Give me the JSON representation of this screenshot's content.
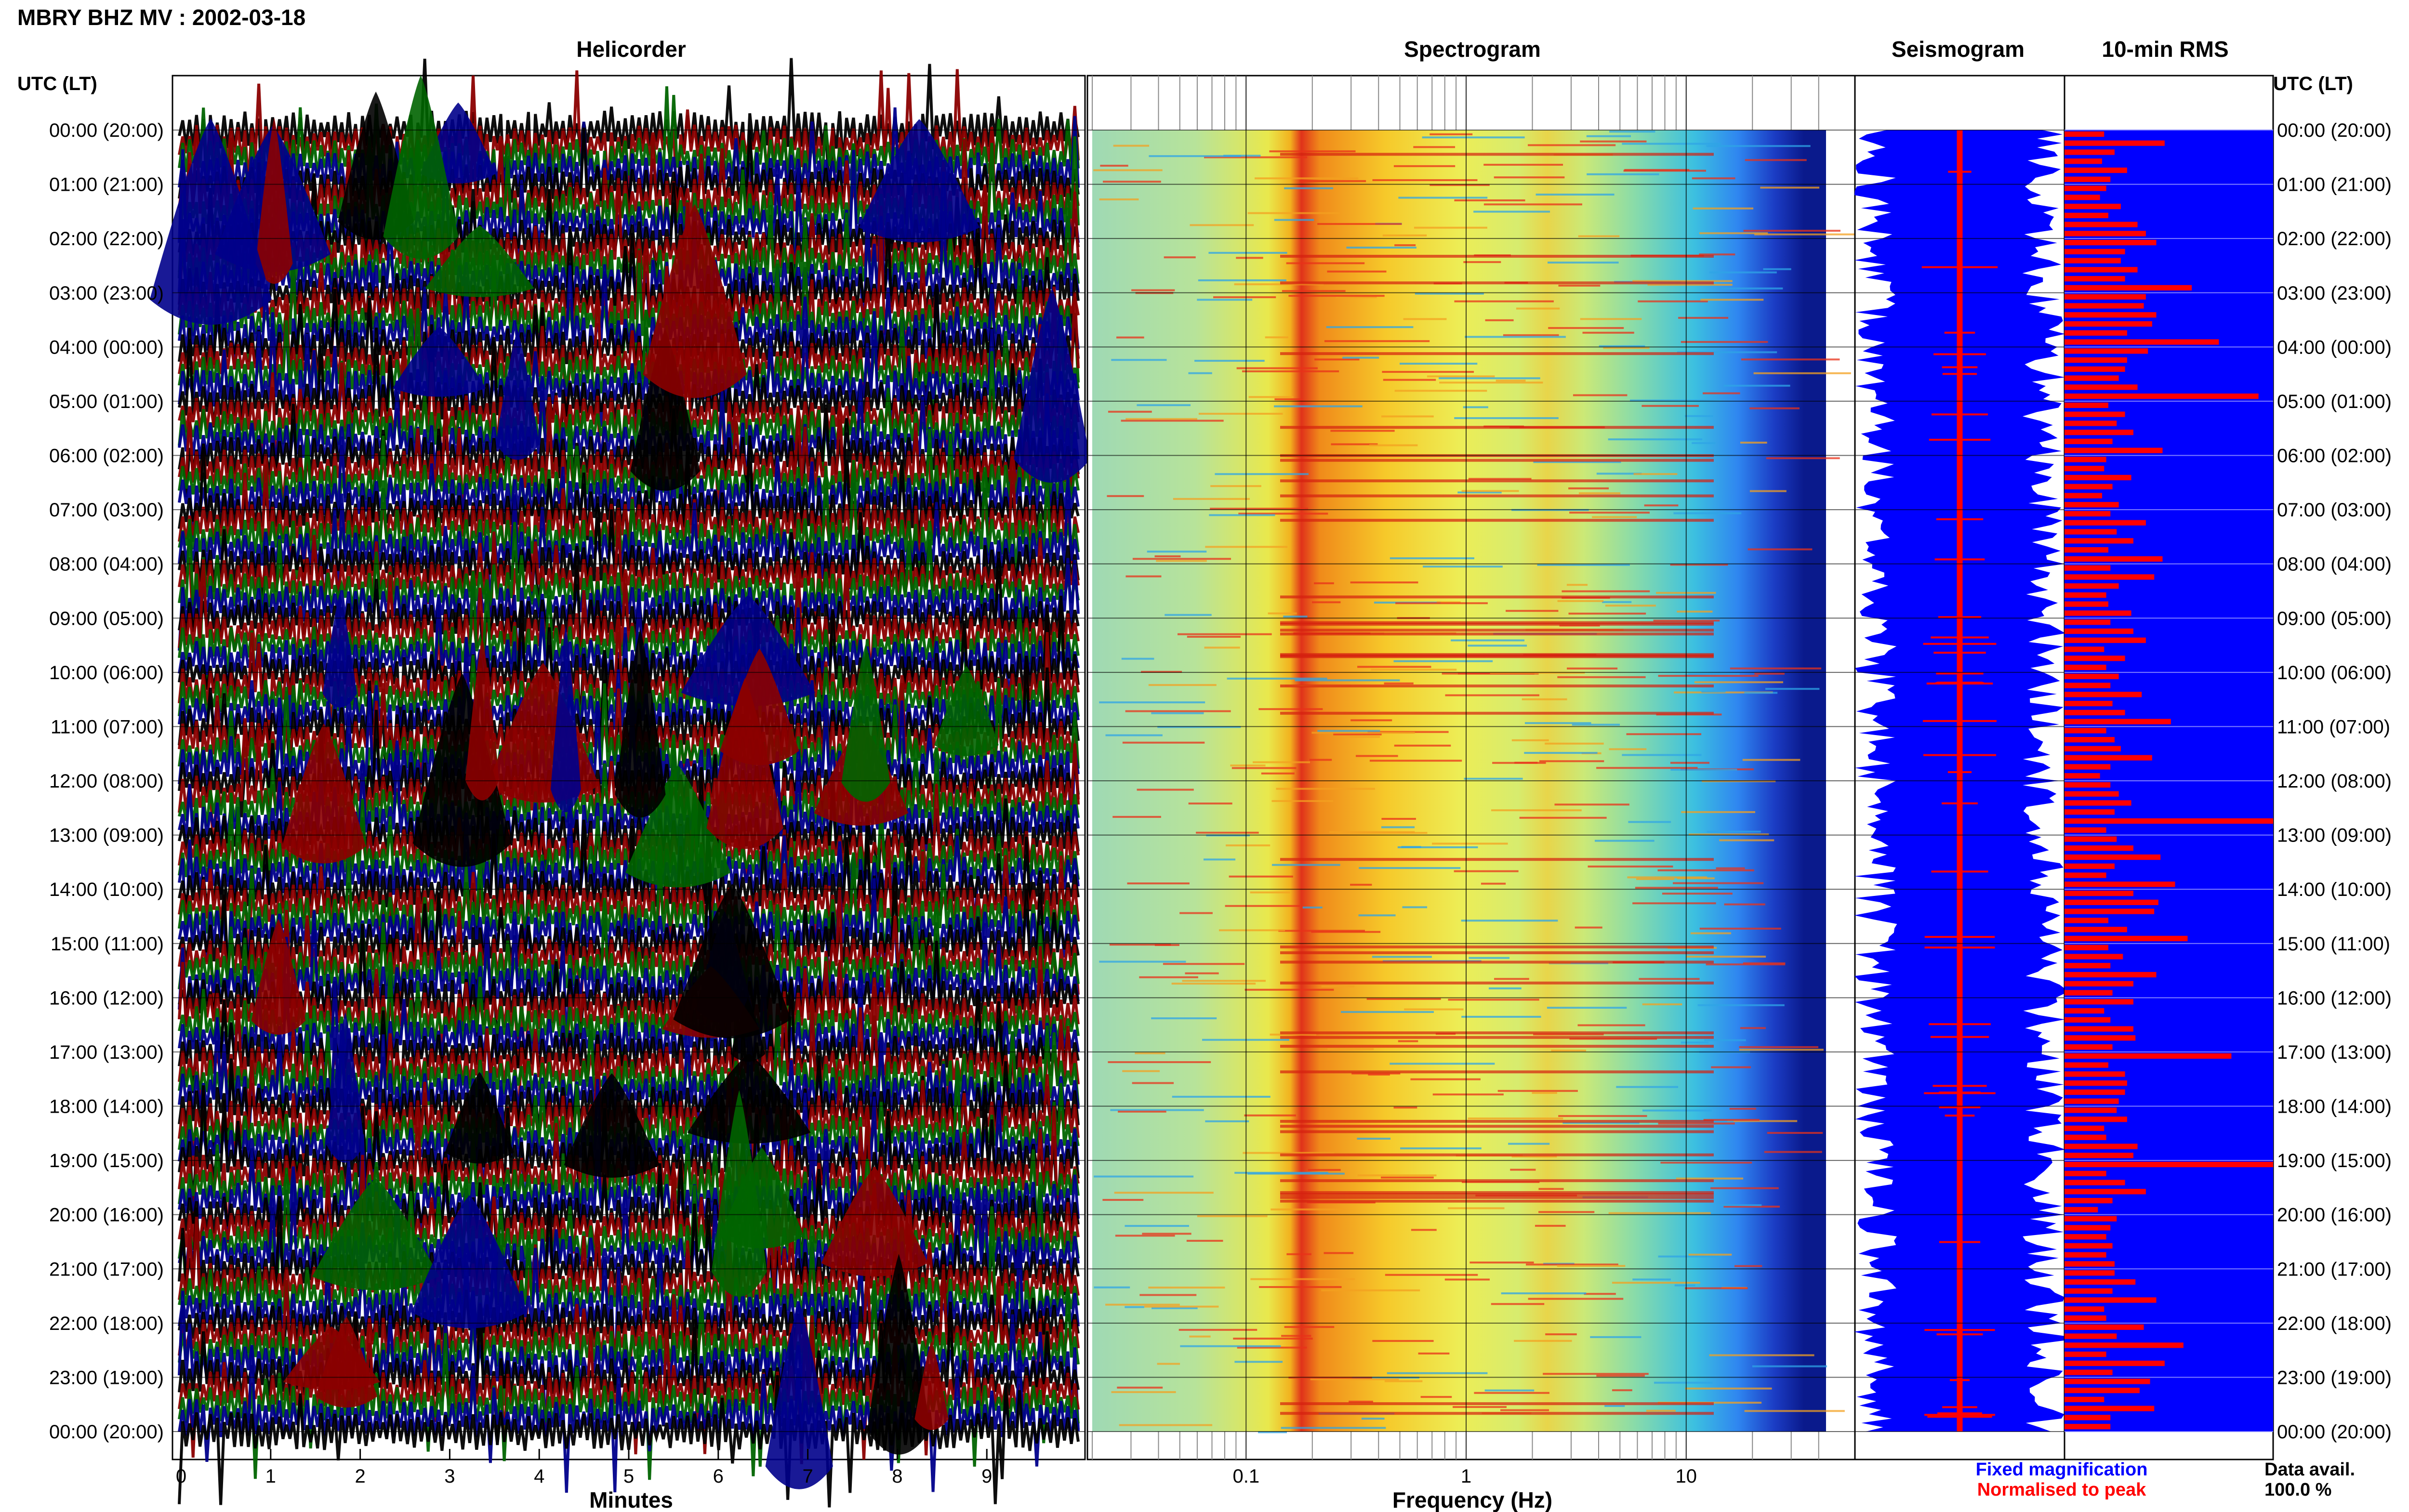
{
  "page": {
    "station_title": "MBRY BHZ MV : 2002-03-18",
    "left_axis_label": "UTC (LT)",
    "right_axis_label": "UTC (LT)"
  },
  "panels": {
    "helicorder": {
      "title": "Helicorder",
      "xlabel": "Minutes"
    },
    "spectrogram": {
      "title": "Spectrogram",
      "xlabel": "Frequency (Hz)"
    },
    "seismogram": {
      "title": "Seismogram"
    },
    "rms": {
      "title": "10-min RMS"
    }
  },
  "legend": {
    "fixed_magnification": "Fixed magnification",
    "normalised_to_peak": "Normalised to peak",
    "fixed_color": "#0000ff",
    "normalised_color": "#ff0000",
    "data_avail_label": "Data avail.",
    "data_avail_value": "100.0 %"
  },
  "colors": {
    "helicorder_traces": [
      "#000000",
      "#8b0000",
      "#006400",
      "#00008b"
    ],
    "spectrogram_background": "#4fb3ff",
    "seismogram_fill": "#0000ff",
    "seismogram_spike": "#ff0000",
    "rms_background": "#0000ff",
    "rms_bars": "#ff0000"
  },
  "chart_data": [
    {
      "type": "line",
      "panel": "Helicorder",
      "title": "Helicorder",
      "xlabel": "Minutes",
      "x_ticks": [
        "0",
        "1",
        "2",
        "3",
        "4",
        "5",
        "6",
        "7",
        "8",
        "9"
      ],
      "xlim": [
        0,
        10
      ],
      "row_labels": [
        "00:00 (20:00)",
        "01:00 (21:00)",
        "02:00 (22:00)",
        "03:00 (23:00)",
        "04:00 (00:00)",
        "05:00 (01:00)",
        "06:00 (02:00)",
        "07:00 (03:00)",
        "08:00 (04:00)",
        "09:00 (05:00)",
        "10:00 (06:00)",
        "11:00 (07:00)",
        "12:00 (08:00)",
        "13:00 (09:00)",
        "14:00 (10:00)",
        "15:00 (11:00)",
        "16:00 (12:00)",
        "17:00 (13:00)",
        "18:00 (14:00)",
        "19:00 (15:00)",
        "20:00 (16:00)",
        "21:00 (17:00)",
        "22:00 (18:00)",
        "23:00 (19:00)",
        "00:00 (20:00)"
      ]
    },
    {
      "type": "heatmap",
      "panel": "Spectrogram",
      "title": "Spectrogram",
      "xlabel": "Frequency (Hz)",
      "x_scale": "log",
      "xlim": [
        0.02,
        40
      ],
      "x_ticks": [
        "0.1",
        "1",
        "10"
      ],
      "dominant_band_hz": [
        0.2,
        0.3
      ],
      "secondary_band_hz": [
        2.5,
        4
      ]
    },
    {
      "type": "area",
      "panel": "Seismogram",
      "title": "Seismogram",
      "series": [
        {
          "name": "Fixed magnification",
          "color": "#0000ff"
        },
        {
          "name": "Normalised to peak",
          "color": "#ff0000"
        }
      ]
    },
    {
      "type": "bar",
      "panel": "10-min RMS",
      "title": "10-min RMS",
      "orientation": "horizontal",
      "values": [
        0.19,
        0.48,
        0.24,
        0.18,
        0.3,
        0.22,
        0.2,
        0.17,
        0.27,
        0.21,
        0.35,
        0.39,
        0.44,
        0.29,
        0.27,
        0.35,
        0.29,
        0.61,
        0.39,
        0.38,
        0.44,
        0.42,
        0.3,
        0.74,
        0.4,
        0.3,
        0.29,
        0.26,
        0.35,
        0.93,
        0.21,
        0.29,
        0.25,
        0.33,
        0.23,
        0.47,
        0.2,
        0.19,
        0.32,
        0.23,
        0.18,
        0.26,
        0.22,
        0.39,
        0.25,
        0.33,
        0.21,
        0.47,
        0.22,
        0.43,
        0.26,
        0.2,
        0.21,
        0.32,
        0.22,
        0.33,
        0.39,
        0.19,
        0.29,
        0.2,
        0.26,
        0.22,
        0.37,
        0.23,
        0.29,
        0.51,
        0.2,
        0.24,
        0.27,
        0.42,
        0.22,
        0.17,
        0.22,
        0.26,
        0.32,
        0.24,
        1.0,
        0.2,
        0.25,
        0.33,
        0.46,
        0.24,
        0.2,
        0.53,
        0.33,
        0.45,
        0.43,
        0.21,
        0.3,
        0.59,
        0.21,
        0.28,
        0.22,
        0.44,
        0.33,
        0.23,
        0.33,
        0.19,
        0.22,
        0.33,
        0.34,
        0.23,
        0.8,
        0.21,
        0.29,
        0.3,
        0.29,
        0.26,
        0.25,
        0.3,
        0.19,
        0.2,
        0.35,
        0.33,
        1.0,
        0.2,
        0.29,
        0.39,
        0.23,
        0.16,
        0.25,
        0.22,
        0.2,
        0.23,
        0.2,
        0.24,
        0.24,
        0.34,
        0.23,
        0.44,
        0.19,
        0.2,
        0.38,
        0.25,
        0.57,
        0.2,
        0.48,
        0.23,
        0.41,
        0.36,
        0.19,
        0.43,
        0.22,
        0.22
      ]
    }
  ]
}
